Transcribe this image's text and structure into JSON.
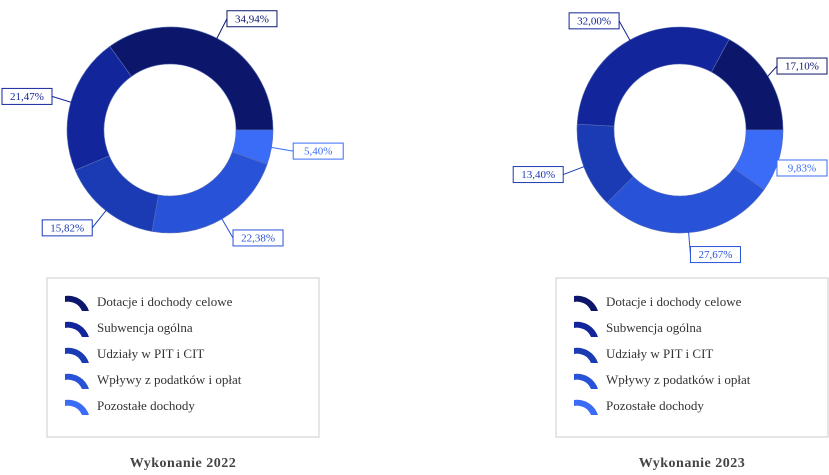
{
  "chart_data": [
    {
      "type": "pie",
      "title": "Wykonanie 2022",
      "categories": [
        "Dotacje i dochody celowe",
        "Subwencja ogólna",
        "Udziały w PIT i CIT",
        "Wpływy z podatków i opłat",
        "Pozostałe dochody"
      ],
      "values": [
        34.94,
        21.47,
        15.82,
        22.38,
        5.4
      ],
      "value_labels": [
        "34,94%",
        "21,47%",
        "15,82%",
        "22,38%",
        "5,40%"
      ],
      "colors": [
        "#0c176b",
        "#13259a",
        "#1a3bb3",
        "#2853d9",
        "#3a6cf7"
      ]
    },
    {
      "type": "pie",
      "title": "Wykonanie 2023",
      "categories": [
        "Dotacje i dochody celowe",
        "Subwencja ogólna",
        "Udziały w PIT i CIT",
        "Wpływy z podatków i opłat",
        "Pozostałe dochody"
      ],
      "values": [
        17.1,
        32.0,
        13.4,
        27.67,
        9.83
      ],
      "value_labels": [
        "17,10%",
        "32,00%",
        "13,40%",
        "27,67%",
        "9,83%"
      ],
      "colors": [
        "#0c176b",
        "#13259a",
        "#1a3bb3",
        "#2853d9",
        "#3a6cf7"
      ]
    }
  ]
}
